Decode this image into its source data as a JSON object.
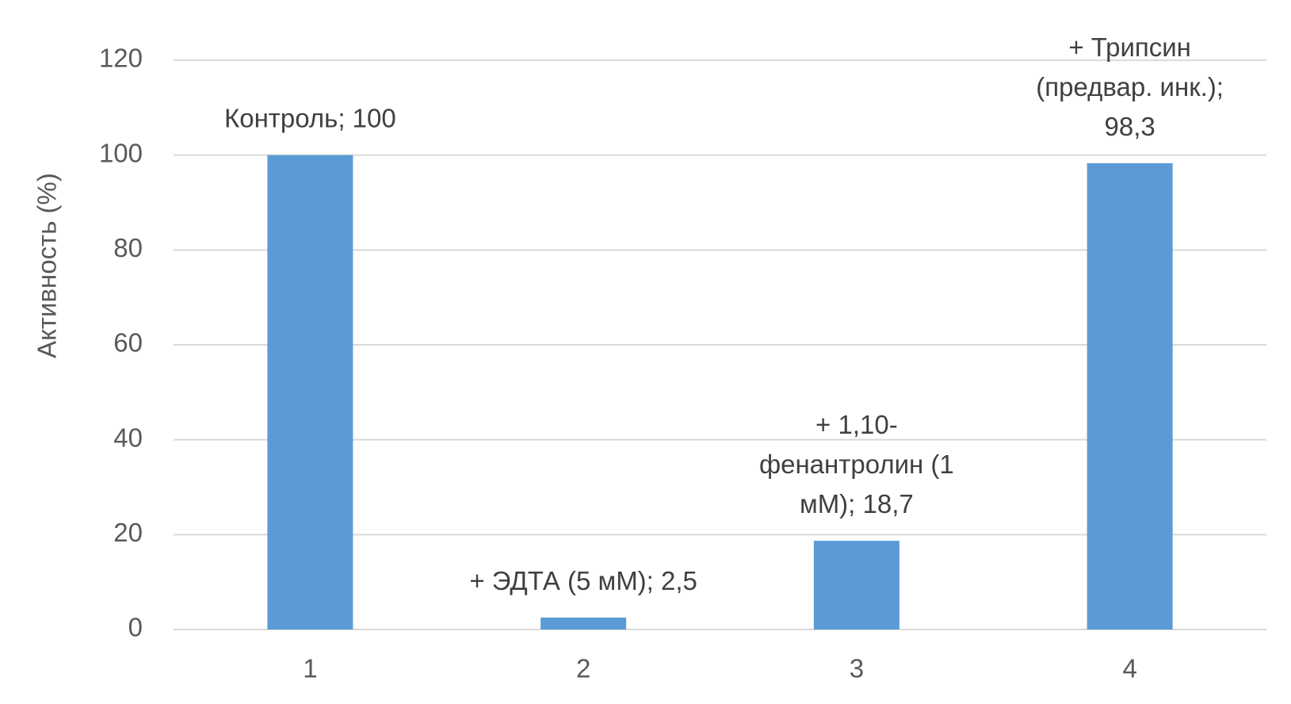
{
  "chart_data": {
    "type": "bar",
    "y_label": "Активность (%)",
    "categories": [
      "1",
      "2",
      "3",
      "4"
    ],
    "values": [
      100,
      2.5,
      18.7,
      98.3
    ],
    "value_labels": [
      "Контроль; 100",
      "+ ЭДТА (5 мМ); 2,5",
      "+ 1,10-фенантролин (1 мМ); 18,7",
      "+ Трипсин (предвар. инк.); 98,3"
    ],
    "color": "#5b9bd5",
    "ylim": [
      0,
      120
    ],
    "yticks": [
      0,
      20,
      40,
      60,
      80,
      100,
      120
    ],
    "grid": true
  }
}
